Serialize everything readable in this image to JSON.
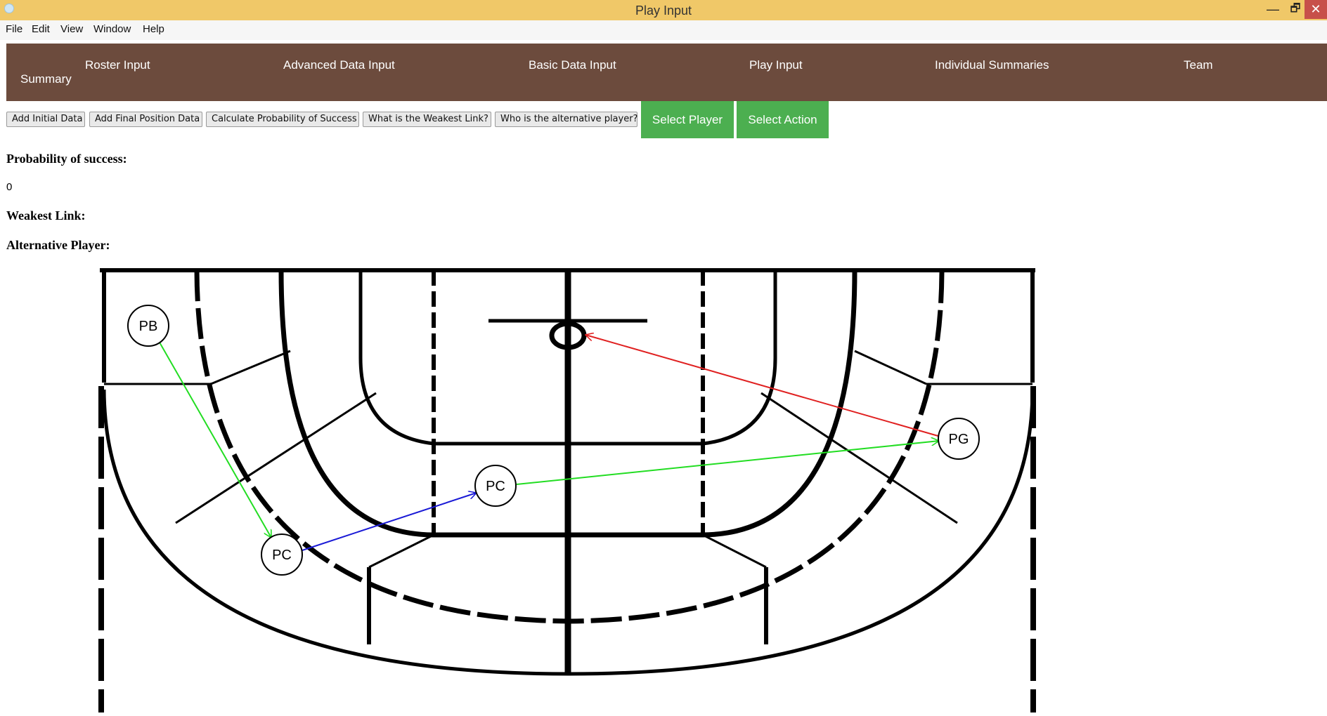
{
  "window": {
    "title": "Play Input",
    "controls": {
      "minimize": "—",
      "maximize": "🗗",
      "close": "✕"
    }
  },
  "menu": [
    "File",
    "Edit",
    "View",
    "Window",
    "Help"
  ],
  "tabs": [
    {
      "label": "Roster Input"
    },
    {
      "label": "Advanced Data Input"
    },
    {
      "label": "Basic Data Input"
    },
    {
      "label": "Play Input"
    },
    {
      "label": "Individual Summaries"
    },
    {
      "label": "Team"
    },
    {
      "label": "Summary"
    }
  ],
  "toolbar": {
    "buttons": [
      "Add Initial Data",
      "Add Final Position Data",
      "Calculate Probability of Success",
      "What is the Weakest Link?",
      "Who is the alternative player?"
    ],
    "select_player": "Select Player",
    "select_action": "Select Action"
  },
  "results": {
    "probability_label": "Probability of success:",
    "probability_value": "0",
    "weakest_link_label": "Weakest Link:",
    "alternative_player_label": "Alternative Player:"
  },
  "court": {
    "players": [
      {
        "label": "PB"
      },
      {
        "label": "PC"
      },
      {
        "label": "PC"
      },
      {
        "label": "PG"
      }
    ],
    "arrow_colors": {
      "pb_to_pc": "#22dd22",
      "pc_to_pc": "#1a1ad6",
      "pc_to_pg": "#22dd22",
      "pg_to_goal": "#e02020"
    }
  },
  "colors": {
    "titlebar": "#f0c868",
    "tabbar": "#6c4b3d",
    "accent_green": "#4caf50",
    "close": "#c7504a"
  }
}
